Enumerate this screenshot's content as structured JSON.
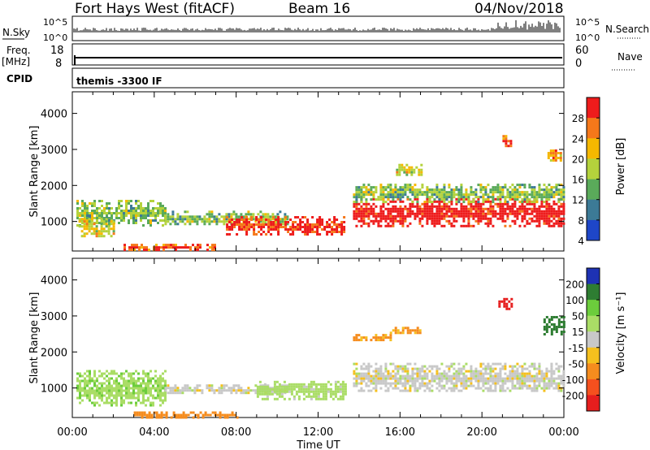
{
  "header": {
    "station": "Fort Hays West (fitACF)",
    "beam": "Beam 16",
    "date": "04/Nov/2018"
  },
  "status_panels": {
    "nsky_label": "N.Sky",
    "nsky_ticks": [
      "10^5",
      "10^0"
    ],
    "nsearch_label": "N.Search",
    "freq_label_line1": "Freq.",
    "freq_label_line2": "[MHz]",
    "freq_ticks": [
      "18",
      "8"
    ],
    "nave_label": "Nave",
    "nave_ticks": [
      "60",
      "0"
    ],
    "cpid_label": "CPID",
    "cpid_text": "themis -3300 IF"
  },
  "colorbars": {
    "power": {
      "label": "Power [dB]",
      "ticks": [
        "28",
        "24",
        "20",
        "16",
        "12",
        "8",
        "4"
      ],
      "colors": [
        "#ee1c1c",
        "#f5781a",
        "#f5b800",
        "#b4d23c",
        "#5aaa5a",
        "#3c7a96",
        "#1e46c8"
      ]
    },
    "velocity": {
      "label": "Velocity [m s⁻¹]",
      "ticks": [
        "200",
        "100",
        "50",
        "15",
        "-15",
        "-50",
        "-100",
        "-200"
      ],
      "colors": [
        "#1e32b4",
        "#2e7d32",
        "#6ccd3c",
        "#aadd66",
        "#c8c8c8",
        "#f5c01e",
        "#f58c1e",
        "#f5501e",
        "#e61e1e"
      ]
    }
  },
  "chart_data": [
    {
      "type": "heatmap",
      "panel": "power",
      "xlabel": "Time UT",
      "ylabel": "Slant Range [km]",
      "x_ticks": [
        "00:00",
        "04:00",
        "08:00",
        "12:00",
        "16:00",
        "20:00",
        "00:00"
      ],
      "xlim_hours": [
        0,
        24
      ],
      "y_ticks": [
        1000,
        2000,
        3000,
        4000
      ],
      "ylim": [
        180,
        4600
      ],
      "colorbar": "Power [dB]",
      "regions": [
        {
          "t0": 0.2,
          "t1": 4.5,
          "r0": 900,
          "r1": 1600,
          "value": 12
        },
        {
          "t0": 0.3,
          "t1": 2.0,
          "r0": 600,
          "r1": 1100,
          "value": 16
        },
        {
          "t0": 4.5,
          "t1": 10.5,
          "r0": 900,
          "r1": 1300,
          "value": 12
        },
        {
          "t0": 7.5,
          "t1": 13.3,
          "r0": 650,
          "r1": 1150,
          "value": 26
        },
        {
          "t0": 2.5,
          "t1": 7.0,
          "r0": 220,
          "r1": 380,
          "value": 24
        },
        {
          "t0": 13.7,
          "t1": 24.0,
          "r0": 900,
          "r1": 1650,
          "value": 28
        },
        {
          "t0": 13.7,
          "t1": 24.0,
          "r0": 1550,
          "r1": 2050,
          "value": 12
        },
        {
          "t0": 15.8,
          "t1": 17.0,
          "r0": 2300,
          "r1": 2600,
          "value": 16
        },
        {
          "t0": 21.0,
          "t1": 21.4,
          "r0": 3100,
          "r1": 3400,
          "value": 24
        },
        {
          "t0": 23.2,
          "t1": 23.9,
          "r0": 2700,
          "r1": 3000,
          "value": 20
        }
      ]
    },
    {
      "type": "heatmap",
      "panel": "velocity",
      "xlabel": "Time UT",
      "ylabel": "Slant Range [km]",
      "x_ticks": [
        "00:00",
        "04:00",
        "08:00",
        "12:00",
        "16:00",
        "20:00",
        "00:00"
      ],
      "xlim_hours": [
        0,
        24
      ],
      "y_ticks": [
        1000,
        2000,
        3000,
        4000
      ],
      "ylim": [
        180,
        4600
      ],
      "colorbar": "Velocity [m s⁻¹]",
      "regions": [
        {
          "t0": 0.2,
          "t1": 4.5,
          "r0": 500,
          "r1": 1500,
          "value": 40
        },
        {
          "t0": 4.5,
          "t1": 10.5,
          "r0": 850,
          "r1": 1100,
          "value": 0
        },
        {
          "t0": 9.0,
          "t1": 13.3,
          "r0": 700,
          "r1": 1200,
          "value": 30
        },
        {
          "t0": 13.7,
          "t1": 24.0,
          "r0": 900,
          "r1": 1700,
          "value": 0
        },
        {
          "t0": 13.7,
          "t1": 15.5,
          "r0": 2300,
          "r1": 2500,
          "value": -60
        },
        {
          "t0": 15.5,
          "t1": 17.0,
          "r0": 2500,
          "r1": 2700,
          "value": -60
        },
        {
          "t0": 20.8,
          "t1": 21.4,
          "r0": 3200,
          "r1": 3500,
          "value": -220
        },
        {
          "t0": 23.0,
          "t1": 24.0,
          "r0": 2500,
          "r1": 3000,
          "value": 120
        },
        {
          "t0": 3.0,
          "t1": 8.0,
          "r0": 200,
          "r1": 350,
          "value": -80
        }
      ]
    }
  ]
}
